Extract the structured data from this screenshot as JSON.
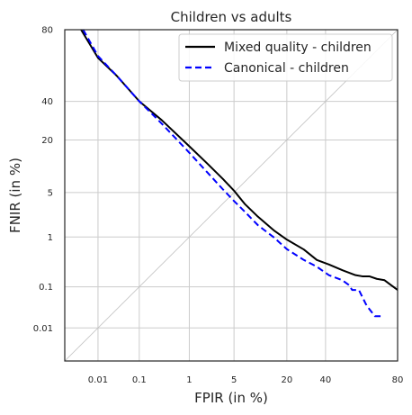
{
  "chart_data": {
    "type": "line",
    "title": "Children vs adults",
    "xlabel": "FPIR (in %)",
    "ylabel": "FNIR (in %)",
    "x_scale": "probit",
    "y_scale": "probit",
    "xlim": [
      0.0012,
      80
    ],
    "ylim": [
      0.0012,
      80
    ],
    "grid": true,
    "legend_position": "top-right",
    "x_ticks": [
      {
        "value": 0.01,
        "label": "0.01"
      },
      {
        "value": 0.1,
        "label": "0.1"
      },
      {
        "value": 1,
        "label": "1"
      },
      {
        "value": 5,
        "label": "5"
      },
      {
        "value": 20,
        "label": "20"
      },
      {
        "value": 40,
        "label": "40"
      },
      {
        "value": 80,
        "label": "80"
      }
    ],
    "y_ticks": [
      {
        "value": 0.01,
        "label": "0.01"
      },
      {
        "value": 0.1,
        "label": "0.1"
      },
      {
        "value": 1,
        "label": "1"
      },
      {
        "value": 5,
        "label": "5"
      },
      {
        "value": 20,
        "label": "20"
      },
      {
        "value": 40,
        "label": "40"
      },
      {
        "value": 80,
        "label": "80"
      }
    ],
    "series": [
      {
        "name": "Mixed quality - children",
        "color": "#000000",
        "style": "solid",
        "x": [
          0.0035,
          0.01,
          0.03,
          0.1,
          0.3,
          1,
          2,
          3.5,
          5,
          7,
          10,
          15,
          20,
          28,
          35,
          42,
          50,
          58,
          62,
          66,
          70,
          74,
          77,
          80
        ],
        "y": [
          80,
          66,
          55.4,
          40.1,
          29.5,
          17.4,
          11.5,
          7.5,
          5.3,
          3.4,
          2.2,
          1.3,
          0.9,
          0.59,
          0.37,
          0.3,
          0.23,
          0.18,
          0.17,
          0.17,
          0.15,
          0.14,
          0.11,
          0.085
        ]
      },
      {
        "name": "Canonical - children",
        "color": "#0000ff",
        "style": "dashed",
        "x": [
          0.004,
          0.01,
          0.03,
          0.1,
          0.3,
          1,
          2,
          3.5,
          5,
          7,
          10,
          15,
          20,
          28,
          35,
          42,
          50,
          54,
          56,
          60,
          64,
          66,
          69,
          72
        ],
        "y": [
          80,
          67,
          55.4,
          40.1,
          27.7,
          15,
          9.1,
          5.5,
          3.8,
          2.6,
          1.6,
          0.98,
          0.6,
          0.37,
          0.27,
          0.18,
          0.14,
          0.11,
          0.085,
          0.085,
          0.04,
          0.03,
          0.02,
          0.02
        ]
      }
    ],
    "reference_line": {
      "from": [
        0.0012,
        0.0012
      ],
      "to": [
        80,
        80
      ],
      "color": "#c0c0c0"
    }
  }
}
